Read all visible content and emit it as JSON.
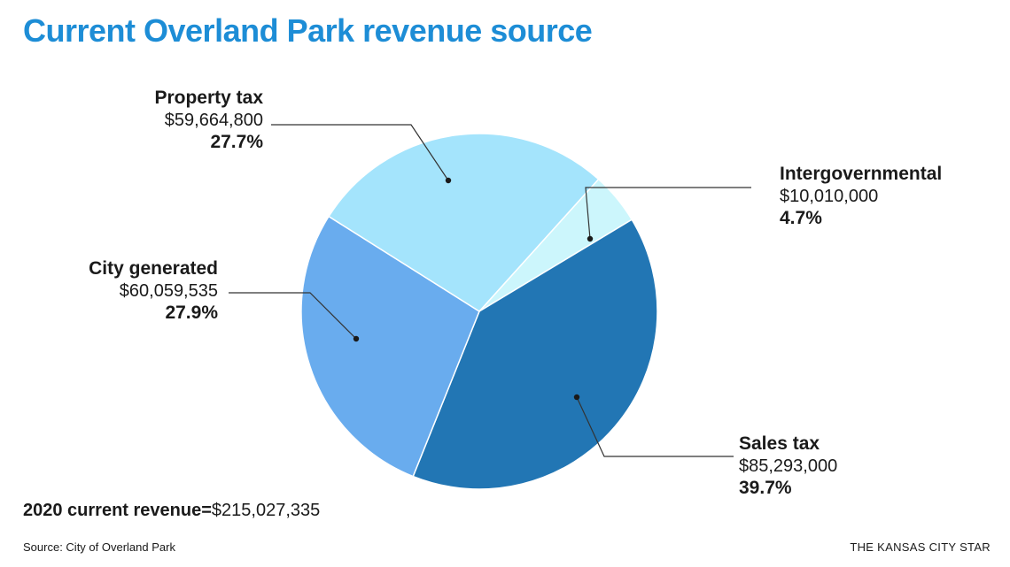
{
  "header": {
    "title": "Current Overland Park revenue source"
  },
  "chart_data": {
    "type": "pie",
    "title": "Current Overland Park revenue source",
    "slices": [
      {
        "label": "Intergovernmental",
        "amount": "$10,010,000",
        "percent_label": "4.7%",
        "value": 4.7,
        "color": "#ccf6fc"
      },
      {
        "label": "Sales tax",
        "amount": "$85,293,000",
        "percent_label": "39.7%",
        "value": 39.7,
        "color": "#2276b4"
      },
      {
        "label": "City generated",
        "amount": "$60,059,535",
        "percent_label": "27.9%",
        "value": 27.9,
        "color": "#69acee"
      },
      {
        "label": "Property tax",
        "amount": "$59,664,800",
        "percent_label": "27.7%",
        "value": 27.7,
        "color": "#a4e4fc"
      }
    ]
  },
  "footer": {
    "total_label": "2020 current revenue=",
    "total_value": "$215,027,335",
    "source": "Source: City of Overland Park",
    "credit": "THE KANSAS CITY STAR"
  }
}
